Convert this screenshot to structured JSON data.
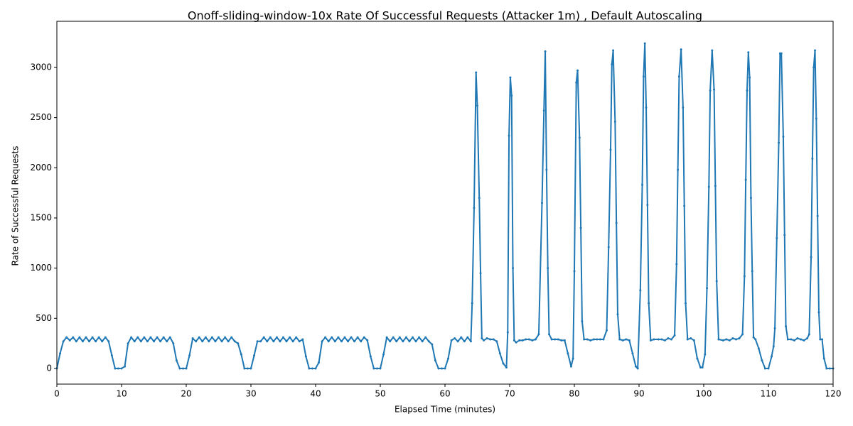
{
  "chart_data": {
    "type": "line",
    "title": "Onoff-sliding-window-10x Rate Of Successful Requests (Attacker 1m) , Default Autoscaling",
    "x_label": "Elapsed Time (minutes)",
    "y_label": "Rate of Successful Requests",
    "xlim": [
      0,
      120
    ],
    "ylim": [
      -156,
      3460
    ],
    "xticks": [
      0,
      10,
      20,
      30,
      40,
      50,
      60,
      70,
      80,
      90,
      100,
      110,
      120
    ],
    "yticks": [
      0,
      500,
      1000,
      1500,
      2000,
      2500,
      3000
    ],
    "grid": false,
    "x": [
      0,
      0.5,
      1,
      1.5,
      2,
      2.5,
      3,
      3.5,
      4,
      4.5,
      5,
      5.5,
      6,
      6.5,
      7,
      7.5,
      8,
      8.5,
      9,
      9.5,
      10,
      10.5,
      11,
      11.5,
      12,
      12.5,
      13,
      13.5,
      14,
      14.5,
      15,
      15.5,
      16,
      16.5,
      17,
      17.5,
      18,
      18.5,
      19,
      19.5,
      20,
      20.5,
      21,
      21.5,
      22,
      22.5,
      23,
      23.5,
      24,
      24.5,
      25,
      25.5,
      26,
      26.5,
      27,
      27.5,
      28,
      28.5,
      29,
      29.5,
      30,
      30.5,
      31,
      31.5,
      32,
      32.5,
      33,
      33.5,
      34,
      34.5,
      35,
      35.5,
      36,
      36.5,
      37,
      37.5,
      38,
      38.5,
      39,
      39.5,
      40,
      40.5,
      41,
      41.5,
      42,
      42.5,
      43,
      43.5,
      44,
      44.5,
      45,
      45.5,
      46,
      46.5,
      47,
      47.5,
      48,
      48.5,
      49,
      49.5,
      50,
      50.5,
      51,
      51.5,
      52,
      52.5,
      53,
      53.5,
      54,
      54.5,
      55,
      55.5,
      56,
      56.5,
      57,
      57.5,
      58,
      58.5,
      59,
      59.5,
      60,
      60.5,
      61,
      61.5,
      62,
      62.5,
      63,
      63.5,
      64,
      64.2,
      64.5,
      64.8,
      65,
      65.3,
      65.5,
      65.7,
      66,
      66.5,
      67,
      67.5,
      68,
      68.5,
      69,
      69.5,
      69.7,
      69.9,
      70.1,
      70.3,
      70.5,
      70.7,
      71,
      71.5,
      72,
      72.5,
      73,
      73.5,
      74,
      74.5,
      75,
      75.3,
      75.5,
      75.7,
      75.9,
      76.1,
      76.5,
      77,
      77.5,
      78,
      78.5,
      79,
      79.5,
      79.8,
      80,
      80.3,
      80.5,
      80.8,
      81,
      81.2,
      81.5,
      82,
      82.5,
      83,
      83.5,
      84,
      84.5,
      85,
      85.3,
      85.6,
      85.8,
      86,
      86.3,
      86.5,
      86.7,
      87,
      87.5,
      88,
      88.5,
      89,
      89.5,
      89.8,
      90.2,
      90.5,
      90.7,
      90.9,
      91.1,
      91.3,
      91.5,
      91.8,
      92.3,
      93,
      93.5,
      94,
      94.5,
      95,
      95.5,
      95.8,
      96,
      96.2,
      96.5,
      96.8,
      97,
      97.2,
      97.5,
      98,
      98.5,
      99,
      99.5,
      99.8,
      100.2,
      100.5,
      100.8,
      101,
      101.3,
      101.6,
      101.8,
      102,
      102.3,
      103,
      103.5,
      104,
      104.5,
      105,
      105.5,
      106,
      106.3,
      106.5,
      106.7,
      106.9,
      107.1,
      107.3,
      107.5,
      107.7,
      108,
      108.5,
      109,
      109.5,
      110,
      110.5,
      110.8,
      111,
      111.3,
      111.6,
      111.8,
      112,
      112.3,
      112.5,
      112.7,
      113,
      113.5,
      114,
      114.5,
      115,
      115.5,
      116,
      116.3,
      116.6,
      116.8,
      117,
      117.2,
      117.4,
      117.6,
      117.8,
      118,
      118.3,
      118.6,
      119,
      119.5,
      120
    ],
    "series": [
      {
        "name": "Rate of Successful Requests",
        "color": "#1f77b4",
        "values": [
          0,
          150,
          270,
          310,
          280,
          310,
          270,
          310,
          270,
          310,
          270,
          310,
          270,
          310,
          270,
          310,
          270,
          130,
          0,
          0,
          0,
          20,
          250,
          310,
          270,
          310,
          270,
          310,
          270,
          310,
          270,
          310,
          270,
          310,
          270,
          310,
          250,
          80,
          0,
          0,
          0,
          130,
          300,
          270,
          310,
          270,
          310,
          270,
          310,
          270,
          310,
          270,
          310,
          270,
          310,
          270,
          250,
          140,
          0,
          0,
          0,
          130,
          270,
          270,
          310,
          270,
          310,
          270,
          310,
          270,
          310,
          270,
          310,
          270,
          310,
          270,
          290,
          120,
          0,
          0,
          0,
          60,
          270,
          310,
          270,
          310,
          270,
          310,
          270,
          310,
          270,
          310,
          270,
          310,
          270,
          310,
          280,
          120,
          0,
          0,
          0,
          140,
          310,
          270,
          310,
          270,
          310,
          270,
          310,
          270,
          310,
          270,
          310,
          270,
          310,
          270,
          240,
          80,
          0,
          0,
          0,
          100,
          280,
          300,
          270,
          310,
          270,
          310,
          270,
          650,
          1600,
          2950,
          2620,
          1700,
          950,
          300,
          280,
          300,
          290,
          290,
          270,
          150,
          50,
          10,
          360,
          2320,
          2900,
          2720,
          1000,
          280,
          260,
          280,
          280,
          290,
          290,
          280,
          290,
          340,
          1650,
          2570,
          3160,
          1980,
          1000,
          340,
          290,
          290,
          290,
          280,
          280,
          150,
          20,
          100,
          970,
          2850,
          2970,
          2300,
          1400,
          470,
          290,
          290,
          280,
          290,
          290,
          290,
          290,
          380,
          1210,
          2180,
          3030,
          3170,
          2460,
          1450,
          540,
          290,
          280,
          290,
          280,
          150,
          20,
          0,
          780,
          1830,
          2910,
          3240,
          2600,
          1630,
          650,
          280,
          290,
          290,
          290,
          280,
          300,
          290,
          330,
          1040,
          1980,
          2910,
          3180,
          2600,
          1620,
          650,
          290,
          300,
          280,
          100,
          10,
          10,
          140,
          800,
          1810,
          2770,
          3170,
          2780,
          1820,
          870,
          290,
          280,
          290,
          280,
          300,
          290,
          300,
          340,
          920,
          1880,
          2770,
          3150,
          2900,
          1700,
          970,
          310,
          290,
          200,
          80,
          0,
          0,
          120,
          220,
          400,
          1300,
          2250,
          3140,
          3140,
          2310,
          1330,
          420,
          290,
          290,
          280,
          300,
          290,
          280,
          300,
          340,
          1110,
          2090,
          3000,
          3170,
          2490,
          1520,
          560,
          290,
          290,
          100,
          0,
          0,
          0
        ]
      }
    ]
  }
}
